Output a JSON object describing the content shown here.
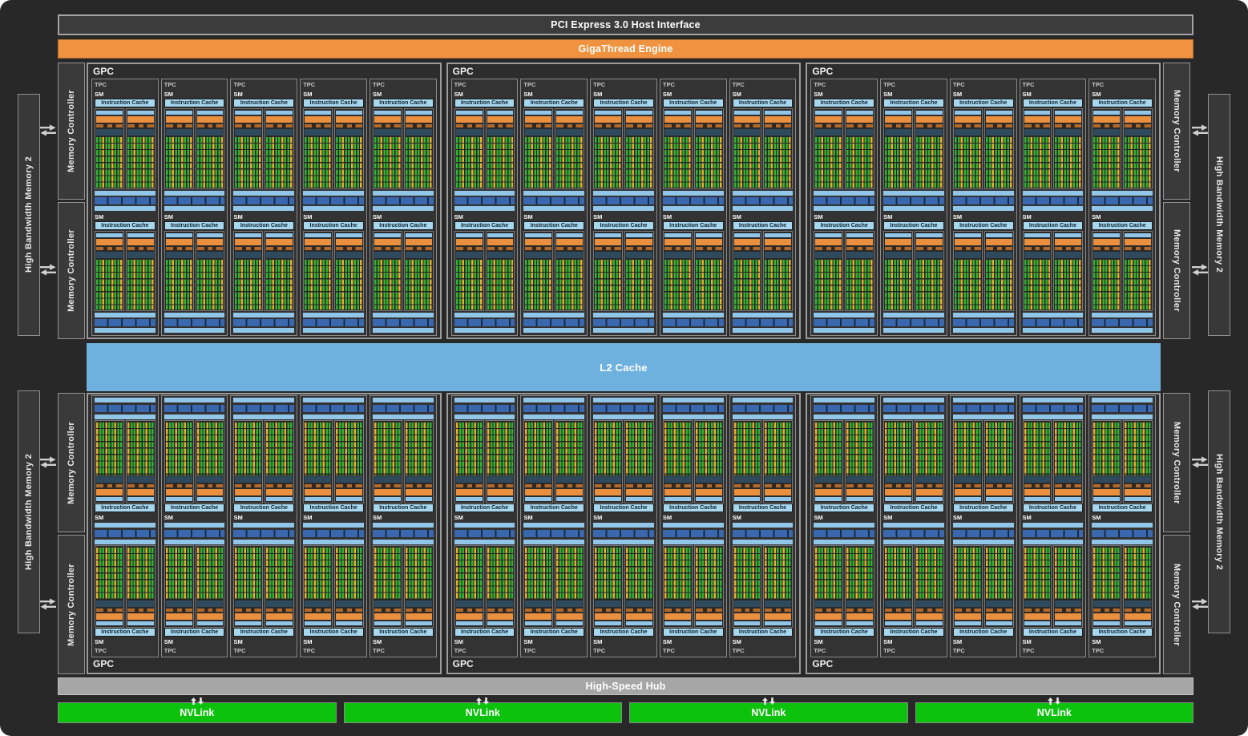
{
  "header": {
    "pci_label": "PCI Express 3.0 Host Interface",
    "gigathread_label": "GigaThread Engine"
  },
  "center": {
    "l2_label": "L2 Cache"
  },
  "footer": {
    "hub_label": "High-Speed Hub",
    "nvlink_label": "NVLink",
    "nvlink_count": 4
  },
  "sides": {
    "hbm_label": "High Bandwidth Memory 2",
    "memory_controller_label": "Memory Controller",
    "hbm_count": 4,
    "memory_controller_count": 8
  },
  "gpc": {
    "label": "GPC",
    "top_row_count": 3,
    "bottom_row_count": 3,
    "tpcs_per_gpc": 5,
    "sms_per_tpc": 2
  },
  "tpc": {
    "label": "TPC"
  },
  "sm": {
    "label": "SM",
    "instruction_cache_label": "Instruction Cache"
  },
  "colors": {
    "background": "#282828",
    "gigathread_orange": "#ef9340",
    "l2_blue": "#6fb1de",
    "hub_gray": "#a6a6a6",
    "nvlink_green": "#0cc20c",
    "core_green": "#33b433",
    "core_yellow": "#edae2c",
    "light_blue_bar": "#92c6e8",
    "instruction_cache_blue": "#a6d7ee",
    "scheduler_orange": "#e98f3e",
    "register_navy": "#2e4a5c",
    "texture_blue": "#3a68ae"
  }
}
